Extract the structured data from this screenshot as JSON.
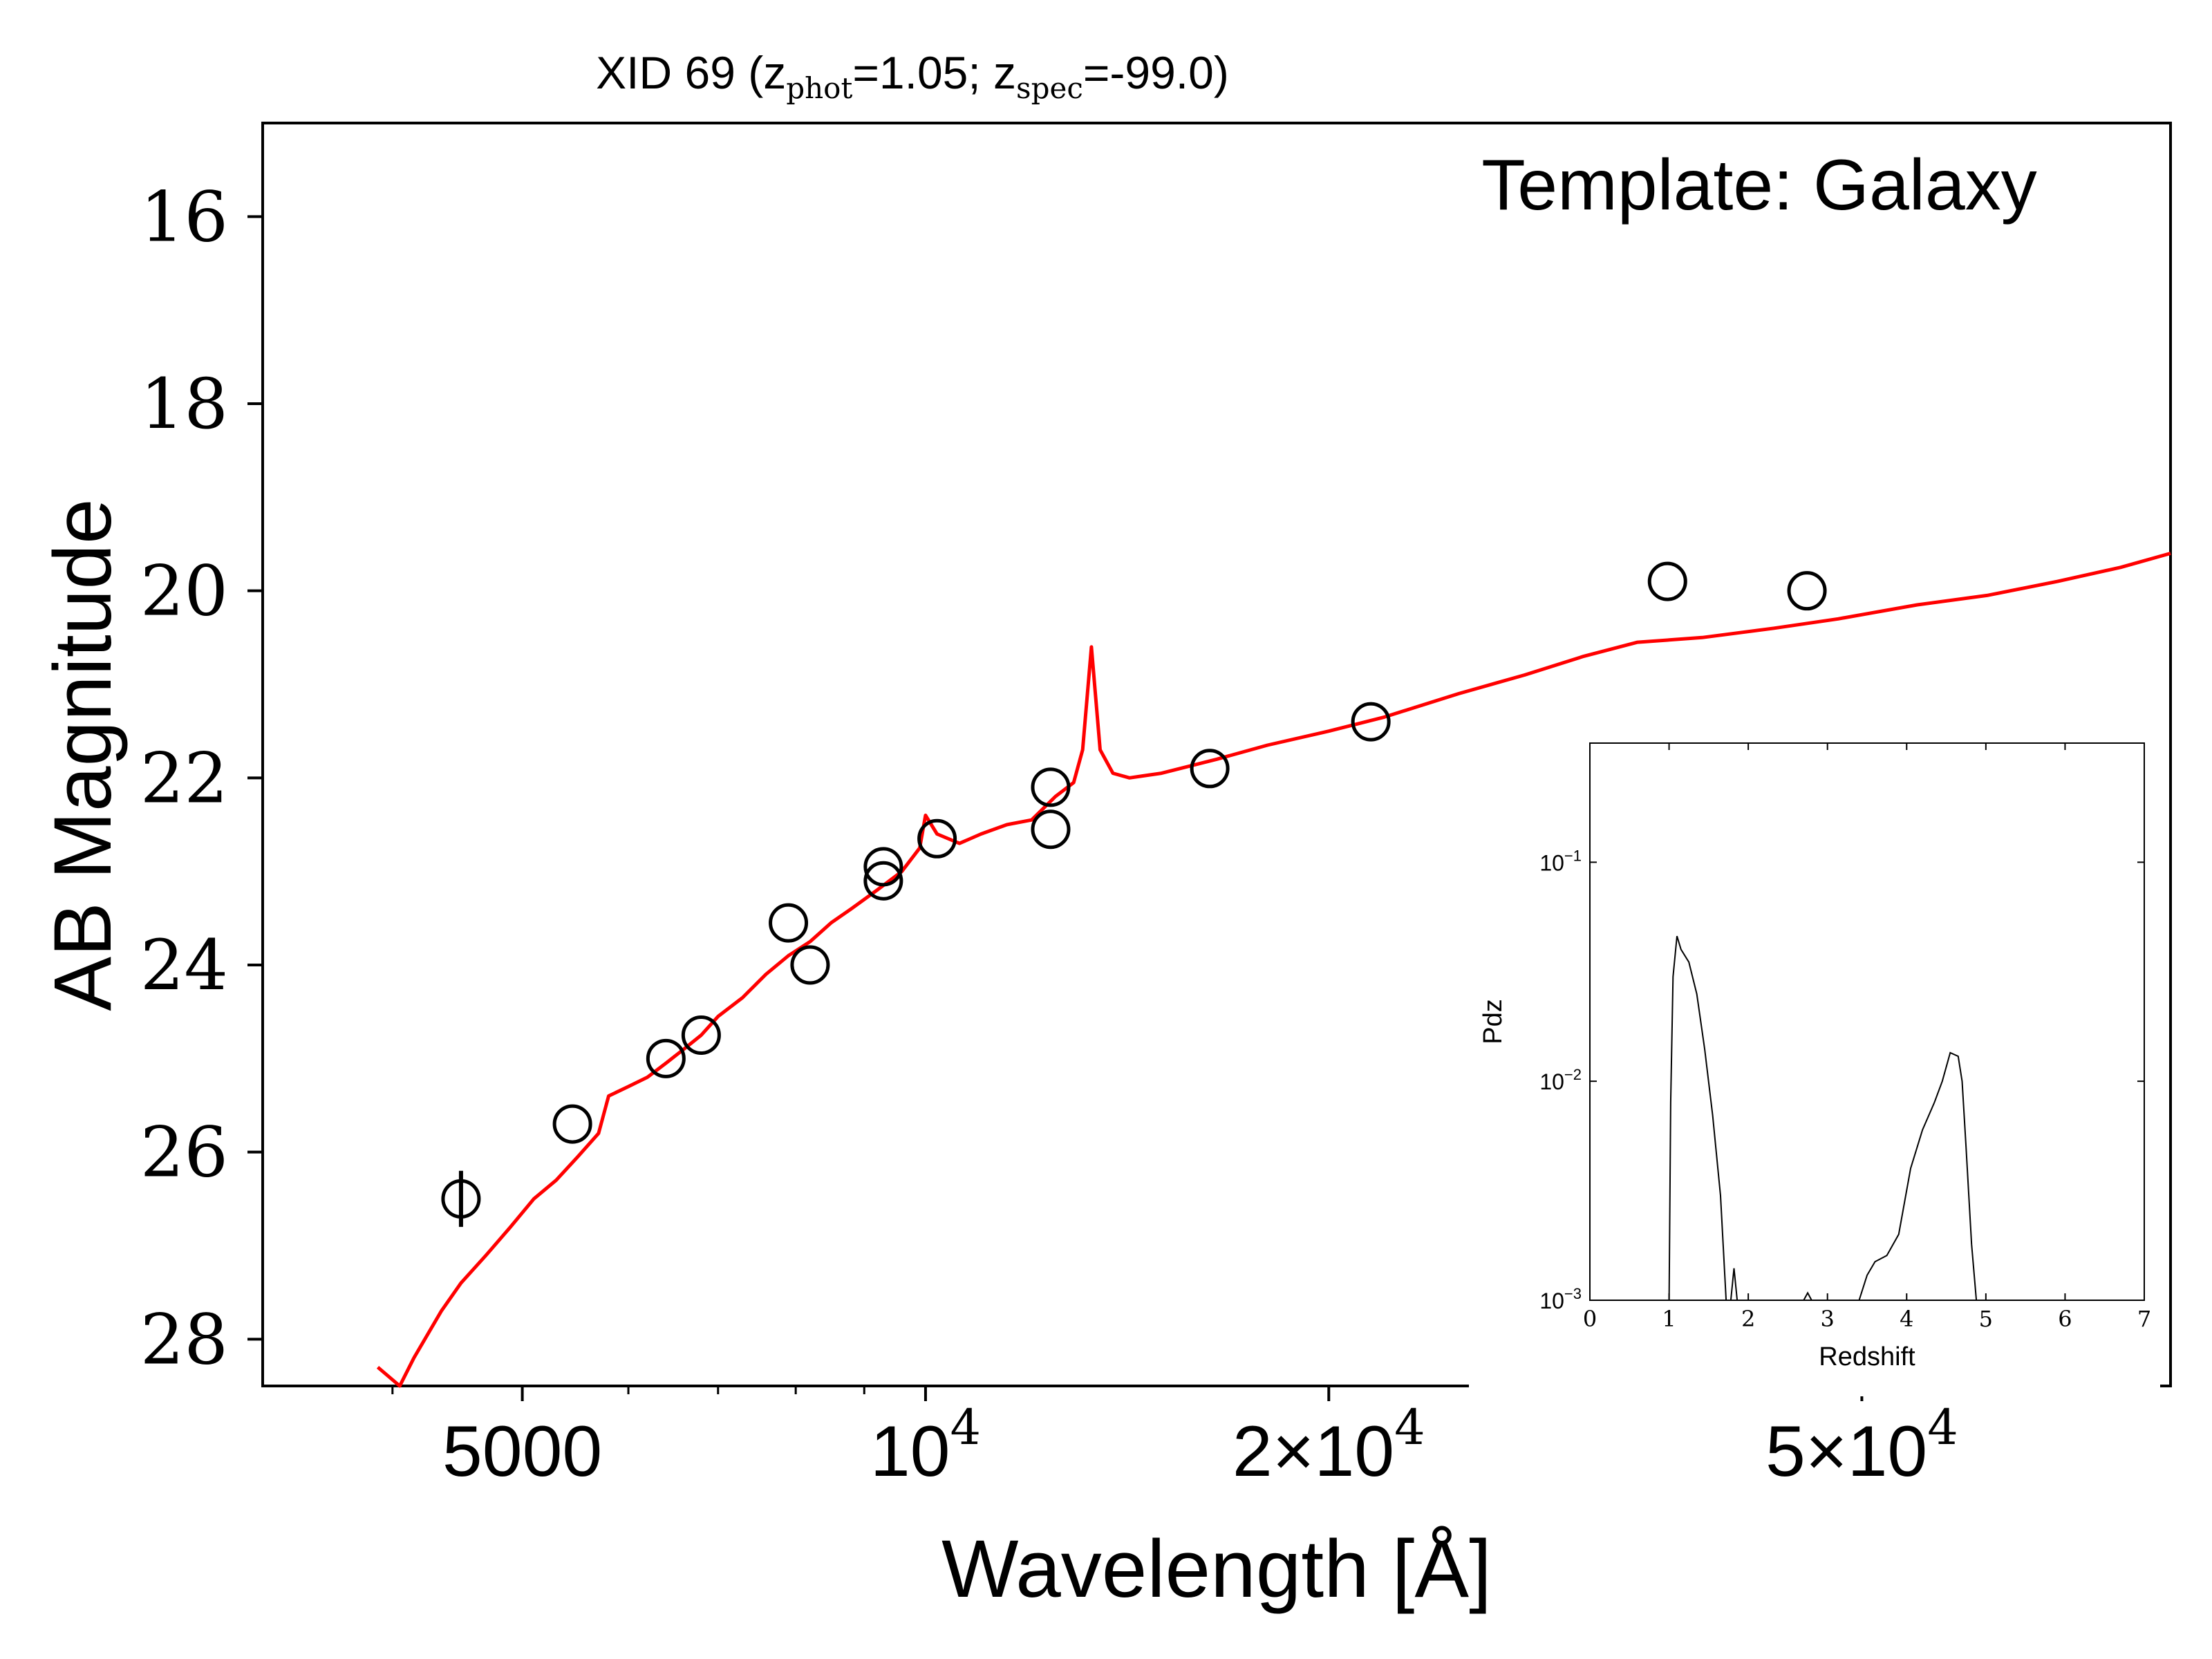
{
  "chart_data": [
    {
      "type": "scatter",
      "title_prefix": "XID 69 (z",
      "title_sub1": "phot",
      "title_mid": "=1.05; z",
      "title_sub2": "spec",
      "title_suffix": "=-99.0)",
      "annotation": "Template: Galaxy",
      "xlabel": "Wavelength [Å]",
      "ylabel": "AB Magnitude",
      "xscale": "log",
      "xlim": [
        3200,
        85000
      ],
      "ylim": [
        28.5,
        15
      ],
      "y_inverted": true,
      "x_ticks": [
        {
          "value": 5000,
          "label": "5000"
        },
        {
          "value": 10000,
          "label": "10",
          "sup": "4"
        },
        {
          "value": 20000,
          "label": "2×10",
          "sup": "4"
        },
        {
          "value": 50000,
          "label": "5×10",
          "sup": "4"
        }
      ],
      "y_ticks": [
        16,
        18,
        20,
        22,
        24,
        26,
        28
      ],
      "series": [
        {
          "kind": "photometry",
          "color": "#000000",
          "points": [
            {
              "x": 4500,
              "y": 26.5,
              "err": 0.3
            },
            {
              "x": 5450,
              "y": 25.7
            },
            {
              "x": 6400,
              "y": 25.0
            },
            {
              "x": 6800,
              "y": 24.75
            },
            {
              "x": 7900,
              "y": 23.55
            },
            {
              "x": 8200,
              "y": 24.0
            },
            {
              "x": 9300,
              "y": 22.95
            },
            {
              "x": 9300,
              "y": 23.1
            },
            {
              "x": 10200,
              "y": 22.65
            },
            {
              "x": 12400,
              "y": 22.1
            },
            {
              "x": 12400,
              "y": 22.55
            },
            {
              "x": 16300,
              "y": 21.9
            },
            {
              "x": 21500,
              "y": 21.4
            },
            {
              "x": 35800,
              "y": 19.9
            },
            {
              "x": 45500,
              "y": 20.0
            }
          ]
        },
        {
          "kind": "template",
          "color": "#ff0000",
          "points": [
            [
              3900,
              28.3
            ],
            [
              4050,
              28.5
            ],
            [
              4150,
              28.2
            ],
            [
              4350,
              27.7
            ],
            [
              4500,
              27.4
            ],
            [
              4700,
              27.1
            ],
            [
              4900,
              26.8
            ],
            [
              5100,
              26.5
            ],
            [
              5300,
              26.3
            ],
            [
              5500,
              26.05
            ],
            [
              5700,
              25.8
            ],
            [
              5800,
              25.4
            ],
            [
              6000,
              25.3
            ],
            [
              6200,
              25.2
            ],
            [
              6400,
              25.05
            ],
            [
              6600,
              24.9
            ],
            [
              6800,
              24.75
            ],
            [
              7000,
              24.55
            ],
            [
              7300,
              24.35
            ],
            [
              7600,
              24.1
            ],
            [
              7900,
              23.9
            ],
            [
              8200,
              23.75
            ],
            [
              8500,
              23.55
            ],
            [
              8800,
              23.4
            ],
            [
              9200,
              23.2
            ],
            [
              9600,
              23.0
            ],
            [
              9900,
              22.75
            ],
            [
              10000,
              22.4
            ],
            [
              10200,
              22.6
            ],
            [
              10600,
              22.7
            ],
            [
              11000,
              22.6
            ],
            [
              11500,
              22.5
            ],
            [
              12000,
              22.45
            ],
            [
              12500,
              22.2
            ],
            [
              12900,
              22.05
            ],
            [
              13100,
              21.7
            ],
            [
              13300,
              20.6
            ],
            [
              13500,
              21.7
            ],
            [
              13800,
              21.95
            ],
            [
              14200,
              22.0
            ],
            [
              15000,
              21.95
            ],
            [
              16500,
              21.8
            ],
            [
              18000,
              21.65
            ],
            [
              20000,
              21.5
            ],
            [
              22000,
              21.35
            ],
            [
              25000,
              21.1
            ],
            [
              28000,
              20.9
            ],
            [
              31000,
              20.7
            ],
            [
              34000,
              20.55
            ],
            [
              38000,
              20.5
            ],
            [
              43000,
              20.4
            ],
            [
              48000,
              20.3
            ],
            [
              55000,
              20.15
            ],
            [
              62000,
              20.05
            ],
            [
              70000,
              19.9
            ],
            [
              78000,
              19.75
            ],
            [
              85000,
              19.6
            ]
          ]
        }
      ]
    },
    {
      "type": "line",
      "xlabel": "Redshift",
      "ylabel": "Pdz",
      "yscale": "log",
      "xlim": [
        0,
        7
      ],
      "ylim": [
        0.001,
        0.35
      ],
      "x_ticks": [
        0,
        1,
        2,
        3,
        4,
        5,
        6,
        7
      ],
      "y_ticks": [
        {
          "value": 0.1,
          "base": "10",
          "exp": "−1"
        },
        {
          "value": 0.01,
          "base": "10",
          "exp": "−2"
        },
        {
          "value": 0.001,
          "base": "10",
          "exp": "−3"
        }
      ],
      "series": [
        {
          "color": "#000000",
          "points": [
            [
              1.0,
              0.001
            ],
            [
              1.02,
              0.008
            ],
            [
              1.05,
              0.03
            ],
            [
              1.1,
              0.046
            ],
            [
              1.15,
              0.04
            ],
            [
              1.25,
              0.035
            ],
            [
              1.35,
              0.025
            ],
            [
              1.45,
              0.014
            ],
            [
              1.55,
              0.007
            ],
            [
              1.65,
              0.003
            ],
            [
              1.72,
              0.001
            ],
            [
              1.78,
              0.001
            ],
            [
              1.82,
              0.0014
            ],
            [
              1.86,
              0.001
            ],
            [
              2.7,
              0.001
            ],
            [
              2.75,
              0.00108
            ],
            [
              2.8,
              0.001
            ],
            [
              3.4,
              0.001
            ],
            [
              3.5,
              0.0013
            ],
            [
              3.6,
              0.0015
            ],
            [
              3.75,
              0.0016
            ],
            [
              3.9,
              0.002
            ],
            [
              4.05,
              0.004
            ],
            [
              4.2,
              0.006
            ],
            [
              4.35,
              0.008
            ],
            [
              4.45,
              0.01
            ],
            [
              4.55,
              0.0135
            ],
            [
              4.65,
              0.013
            ],
            [
              4.7,
              0.01
            ],
            [
              4.75,
              0.005
            ],
            [
              4.82,
              0.0018
            ],
            [
              4.88,
              0.001
            ]
          ]
        }
      ]
    }
  ]
}
